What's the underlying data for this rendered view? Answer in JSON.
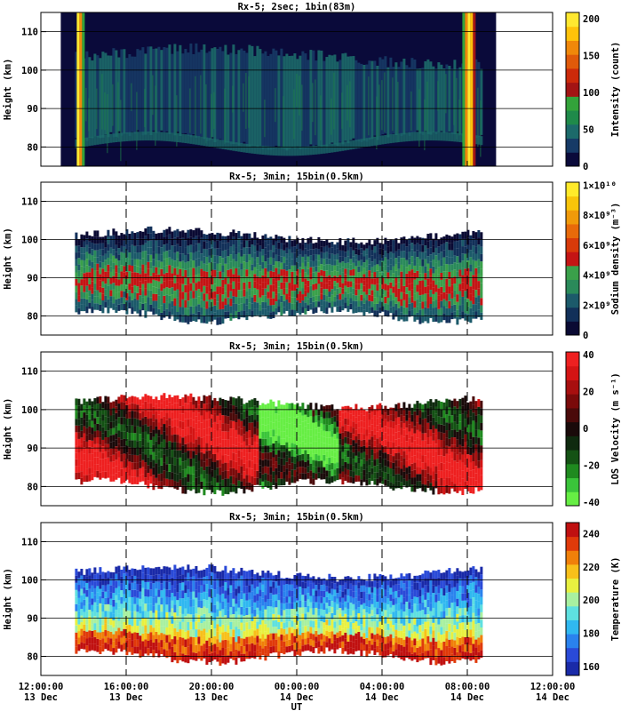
{
  "time_axis": {
    "tick_times": [
      "12:00:00",
      "16:00:00",
      "20:00:00",
      "00:00:00",
      "04:00:00",
      "08:00:00",
      "12:00:00"
    ],
    "tick_dates": [
      "13 Dec",
      "13 Dec",
      "13 Dec",
      "14 Dec",
      "14 Dec",
      "14 Dec",
      "14 Dec"
    ],
    "label": "UT",
    "range_hours": [
      0,
      24
    ]
  },
  "chart_data": [
    {
      "type": "heatmap",
      "title": "Rx-5;  2sec; 1bin(83m)",
      "ylabel": "Height (km)",
      "yticks": [
        80,
        90,
        100,
        110
      ],
      "ylim": [
        75,
        115
      ],
      "colorbar": {
        "label": "Intensity (count)",
        "ticks": [
          "0",
          "50",
          "100",
          "150",
          "200"
        ],
        "range": [
          0,
          200
        ],
        "colors": [
          "#0a0a3a",
          "#163a66",
          "#1c6a6a",
          "#1f8a4a",
          "#33a33a",
          "#a31414",
          "#cc2a0a",
          "#e05a0a",
          "#f0880a",
          "#ffc20a",
          "#ffe830"
        ]
      },
      "dashed_lines_hours": [],
      "data_extent_hours": [
        1.6,
        20.6
      ],
      "layer_km": [
        81,
        104
      ]
    },
    {
      "type": "heatmap",
      "title": "Rx-5; 3min; 15bin(0.5km)",
      "ylabel": "Height (km)",
      "yticks": [
        80,
        90,
        100,
        110
      ],
      "ylim": [
        75,
        115
      ],
      "colorbar": {
        "label": "Sodium density (m⁻³)",
        "ticks": [
          "0",
          "2×10⁹",
          "4×10⁹",
          "6×10⁹",
          "8×10⁹",
          "1×10¹⁰"
        ],
        "range": [
          0,
          10000000000
        ],
        "colors": [
          "#0a0a33",
          "#123059",
          "#1c5a6a",
          "#2a8a5a",
          "#3aa04a",
          "#c41414",
          "#d83a0a",
          "#e86a0a",
          "#f09a0a",
          "#f8c40a",
          "#ffea2a"
        ]
      },
      "dashed_lines_hours": [
        4,
        8,
        12,
        16,
        20
      ],
      "data_extent_hours": [
        1.6,
        20.6
      ],
      "layer_km": [
        79,
        101
      ]
    },
    {
      "type": "heatmap",
      "title": "Rx-5; 3min; 15bin(0.5km)",
      "ylabel": "Height (km)",
      "yticks": [
        80,
        90,
        100,
        110
      ],
      "ylim": [
        75,
        115
      ],
      "colorbar": {
        "label": "LOS Velocity (m s⁻¹)",
        "ticks": [
          "-40",
          "-20",
          "0",
          "20",
          "40"
        ],
        "range": [
          -50,
          50
        ],
        "colors": [
          "#66ee44",
          "#3ac43a",
          "#1f8a1f",
          "#145214",
          "#0f2a0f",
          "#1a0a0a",
          "#4a0a0a",
          "#7a0a0a",
          "#a80f0f",
          "#d41414",
          "#ee2020"
        ]
      },
      "dashed_lines_hours": [
        4,
        8,
        12,
        16,
        20
      ],
      "data_extent_hours": [
        1.6,
        20.6
      ],
      "layer_km": [
        79,
        102
      ]
    },
    {
      "type": "heatmap",
      "title": "Rx-5; 3min; 15bin(0.5km)",
      "ylabel": "Height (km)",
      "yticks": [
        80,
        90,
        100,
        110
      ],
      "ylim": [
        75,
        115
      ],
      "colorbar": {
        "label": "Temperature (K)",
        "ticks": [
          "160",
          "180",
          "200",
          "220",
          "240"
        ],
        "range": [
          150,
          250
        ],
        "colors": [
          "#1a2aa8",
          "#2a4ad8",
          "#2a82ee",
          "#30b8f0",
          "#5ee0e0",
          "#a8f0a0",
          "#e8f040",
          "#f8c01a",
          "#f0800a",
          "#e03a0a",
          "#c01010"
        ]
      },
      "dashed_lines_hours": [
        4,
        8,
        12,
        16,
        20
      ],
      "data_extent_hours": [
        1.6,
        20.6
      ],
      "layer_km": [
        79,
        102
      ]
    }
  ]
}
